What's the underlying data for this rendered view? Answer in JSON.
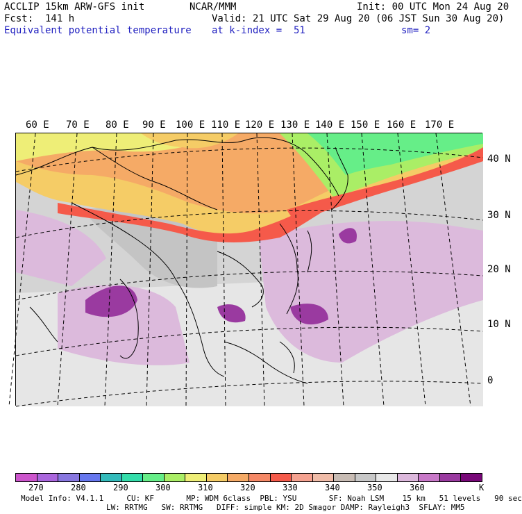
{
  "header": {
    "line1_left": "ACCLIP 15km ARW-GFS init",
    "line1_mid": "NCAR/MMM",
    "line1_right": "Init: 00 UTC Mon 24 Aug 20",
    "line2_left": "Fcst:  141 h",
    "line2_right": "Valid: 21 UTC Sat 29 Aug 20 (06 JST Sun 30 Aug 20)",
    "line3_left": "Equivalent potential temperature",
    "line3_mid": "at k-index =  51",
    "line3_right": "sm= 2"
  },
  "map": {
    "lon_labels": [
      "60 E",
      "70 E",
      "80 E",
      "90 E",
      "100 E",
      "110 E",
      "120 E",
      "130 E",
      "140 E",
      "150 E",
      "160 E",
      "170 E"
    ],
    "lat_labels": [
      "40 N",
      "30 N",
      "20 N",
      "10 N",
      "0"
    ]
  },
  "colorbar": {
    "colors": [
      "#cc55cc",
      "#aa66dd",
      "#8877e0",
      "#6677ee",
      "#33bbbb",
      "#33ddaa",
      "#66ee88",
      "#aaee66",
      "#eeee77",
      "#f5cc66",
      "#f5aa66",
      "#f58866",
      "#f55a4a",
      "#f5a290",
      "#f0bca8",
      "#c8bcb4",
      "#c8c8c8",
      "#e8e8e8",
      "#dcb8dc",
      "#c878c8",
      "#9a3aa0",
      "#780878"
    ],
    "tick_labels": [
      "270",
      "280",
      "290",
      "300",
      "310",
      "320",
      "330",
      "340",
      "350",
      "360"
    ],
    "unit": "K"
  },
  "footer": {
    "line1": "Model Info: V4.1.1     CU: KF       MP: WDM 6class  PBL: YSU       SF: Noah LSM    15 km   51 levels   90 sec",
    "line2": "LW: RRTMG   SW: RRTMG   DIFF: simple KM: 2D Smagor DAMP: Rayleigh3  SFLAY: MM5"
  }
}
